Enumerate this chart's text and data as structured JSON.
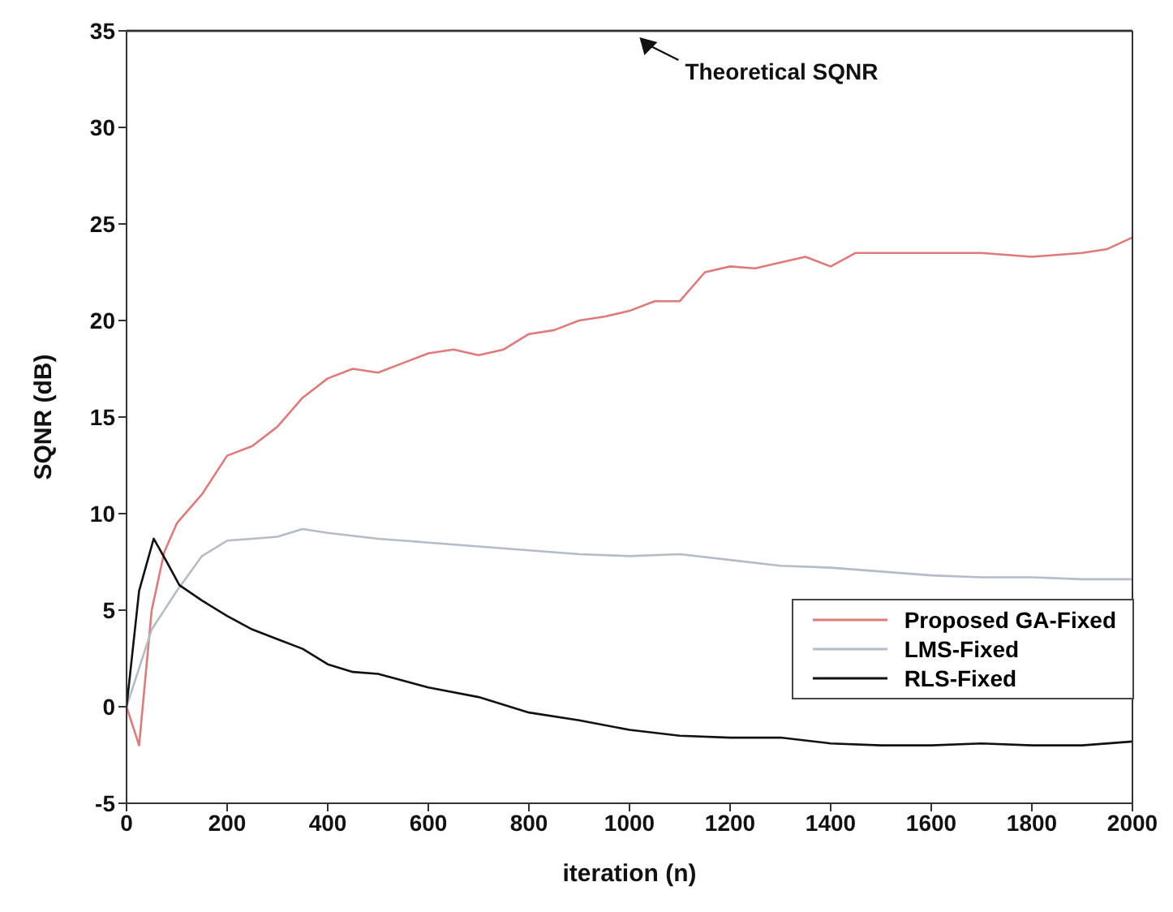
{
  "chart_data": {
    "type": "line",
    "xlabel": "iteration (n)",
    "ylabel": "SQNR (dB)",
    "xlim": [
      0,
      2000
    ],
    "ylim": [
      -5,
      35
    ],
    "xticks": [
      0,
      200,
      400,
      600,
      800,
      1000,
      1200,
      1400,
      1600,
      1800,
      2000
    ],
    "yticks": [
      -5,
      0,
      5,
      10,
      15,
      20,
      25,
      30,
      35
    ],
    "grid": false,
    "legend": "bottom right",
    "line_style": "solid",
    "marker": "none",
    "annotations": [
      {
        "text": "Theoretical SQNR",
        "x": 1020,
        "y": 35
      }
    ],
    "ref_lines": [
      {
        "axis": "y",
        "value": 35,
        "color": "#a8a8a8"
      }
    ],
    "series": [
      {
        "name": "Proposed GA-Fixed",
        "color": "#e07a7a",
        "x": [
          0,
          25,
          50,
          75,
          100,
          150,
          200,
          250,
          300,
          350,
          400,
          450,
          500,
          550,
          600,
          650,
          700,
          750,
          800,
          850,
          900,
          950,
          1000,
          1050,
          1100,
          1150,
          1200,
          1250,
          1300,
          1350,
          1400,
          1450,
          1500,
          1600,
          1700,
          1800,
          1900,
          1950,
          2000
        ],
        "values": [
          0,
          -2,
          5,
          8,
          9.5,
          11,
          13,
          13.5,
          14.5,
          16,
          17,
          17.5,
          17.3,
          17.8,
          18.3,
          18.5,
          18.2,
          18.5,
          19.3,
          19.5,
          20,
          20.2,
          20.5,
          21,
          21,
          22.5,
          22.8,
          22.7,
          23,
          23.3,
          22.8,
          23.5,
          23.5,
          23.5,
          23.5,
          23.3,
          23.5,
          23.7,
          24.3
        ]
      },
      {
        "name": "LMS-Fixed",
        "color": "#b4bcc8",
        "x": [
          0,
          50,
          100,
          150,
          200,
          250,
          300,
          350,
          400,
          500,
          600,
          700,
          800,
          900,
          1000,
          1100,
          1200,
          1300,
          1400,
          1500,
          1600,
          1700,
          1800,
          1900,
          2000
        ],
        "values": [
          0,
          4,
          6,
          7.8,
          8.6,
          8.7,
          8.8,
          9.2,
          9,
          8.7,
          8.5,
          8.3,
          8.1,
          7.9,
          7.8,
          7.9,
          7.6,
          7.3,
          7.2,
          7,
          6.8,
          6.7,
          6.7,
          6.6,
          6.6
        ]
      },
      {
        "name": "RLS-Fixed",
        "color": "#111111",
        "x": [
          0,
          25,
          54,
          80,
          105,
          150,
          200,
          250,
          300,
          350,
          400,
          450,
          500,
          600,
          700,
          800,
          900,
          1000,
          1100,
          1200,
          1300,
          1400,
          1500,
          1600,
          1700,
          1800,
          1900,
          2000
        ],
        "values": [
          0,
          6,
          8.7,
          7.5,
          6.3,
          5.5,
          4.7,
          4,
          3.5,
          3,
          2.2,
          1.8,
          1.7,
          1,
          0.5,
          -0.3,
          -0.7,
          -1.2,
          -1.5,
          -1.6,
          -1.6,
          -1.9,
          -2,
          -2,
          -1.9,
          -2,
          -2,
          -1.8
        ]
      }
    ]
  }
}
